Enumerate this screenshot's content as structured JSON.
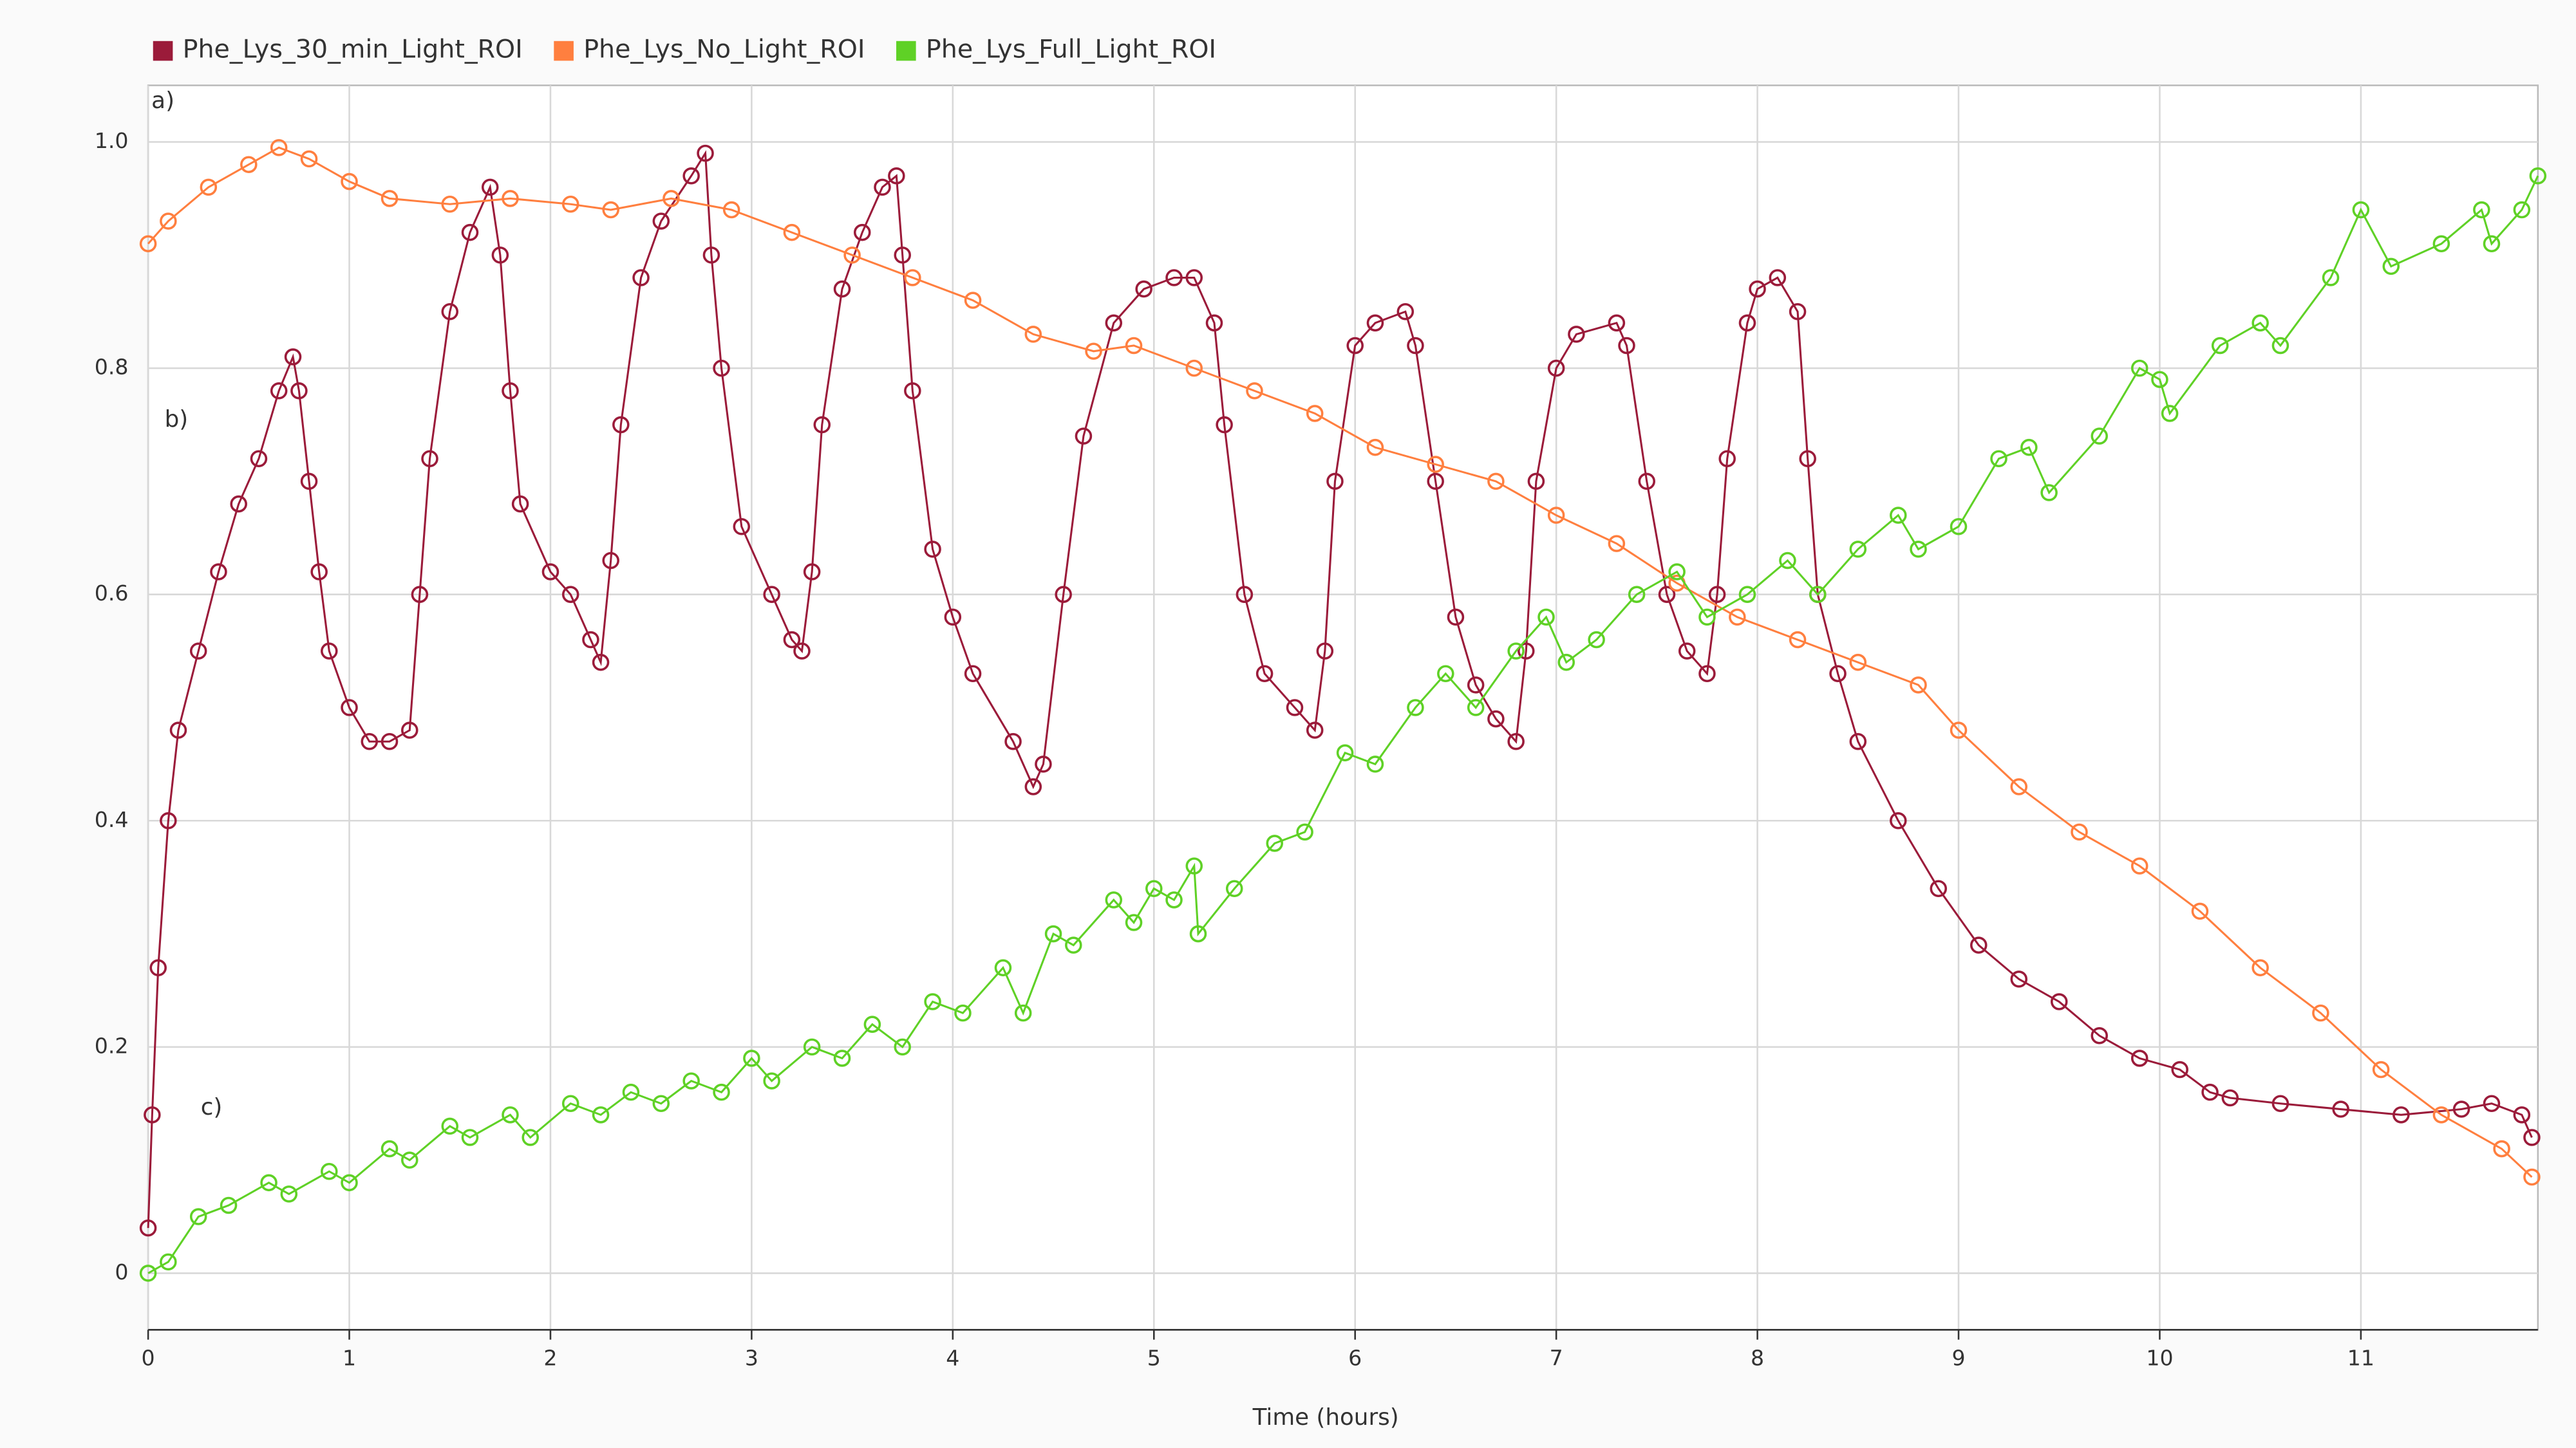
{
  "chart_data": {
    "type": "line",
    "x_label": "Time (hours)",
    "annotations": [
      "a)",
      "b)",
      "c)"
    ],
    "legend": "top",
    "grid": true,
    "marker": "hollow-circle",
    "xlim": [
      0,
      11.88
    ],
    "xticks": [
      0,
      1,
      2,
      3,
      4,
      5,
      6,
      7,
      8,
      9,
      10,
      11
    ],
    "ylim": [
      -0.05,
      1.05
    ],
    "yticks": [
      0,
      0.2,
      0.4,
      0.6,
      0.8,
      {
        "value": 1,
        "label": "1.0"
      }
    ],
    "series": [
      {
        "name": "Phe_Lys_30_min_Light_ROI",
        "color": "#9b1b3a",
        "x": [
          0,
          0.02,
          0.05,
          0.1,
          0.15,
          0.25,
          0.35,
          0.45,
          0.55,
          0.65,
          0.72,
          0.75,
          0.8,
          0.85,
          0.9,
          1.0,
          1.1,
          1.2,
          1.3,
          1.35,
          1.4,
          1.5,
          1.6,
          1.7,
          1.75,
          1.8,
          1.85,
          2.0,
          2.1,
          2.2,
          2.25,
          2.3,
          2.35,
          2.45,
          2.55,
          2.7,
          2.77,
          2.8,
          2.85,
          2.95,
          3.1,
          3.2,
          3.25,
          3.3,
          3.35,
          3.45,
          3.55,
          3.65,
          3.72,
          3.75,
          3.8,
          3.9,
          4.0,
          4.1,
          4.3,
          4.4,
          4.45,
          4.55,
          4.65,
          4.8,
          4.95,
          5.1,
          5.2,
          5.3,
          5.35,
          5.45,
          5.55,
          5.7,
          5.8,
          5.85,
          5.9,
          6.0,
          6.1,
          6.25,
          6.3,
          6.4,
          6.5,
          6.6,
          6.7,
          6.8,
          6.85,
          6.9,
          7.0,
          7.1,
          7.3,
          7.35,
          7.45,
          7.55,
          7.65,
          7.75,
          7.8,
          7.85,
          7.95,
          8.0,
          8.1,
          8.2,
          8.25,
          8.3,
          8.4,
          8.5,
          8.7,
          8.9,
          9.1,
          9.3,
          9.5,
          9.7,
          9.9,
          10.1,
          10.25,
          10.35,
          10.6,
          10.9,
          11.2,
          11.5,
          11.65,
          11.8,
          11.85
        ],
        "values": [
          0.04,
          0.14,
          0.27,
          0.4,
          0.48,
          0.55,
          0.62,
          0.68,
          0.72,
          0.78,
          0.81,
          0.78,
          0.7,
          0.62,
          0.55,
          0.5,
          0.47,
          0.47,
          0.48,
          0.6,
          0.72,
          0.85,
          0.92,
          0.96,
          0.9,
          0.78,
          0.68,
          0.62,
          0.6,
          0.56,
          0.54,
          0.63,
          0.75,
          0.88,
          0.93,
          0.97,
          0.99,
          0.9,
          0.8,
          0.66,
          0.6,
          0.56,
          0.55,
          0.62,
          0.75,
          0.87,
          0.92,
          0.96,
          0.97,
          0.9,
          0.78,
          0.64,
          0.58,
          0.53,
          0.47,
          0.43,
          0.45,
          0.6,
          0.74,
          0.84,
          0.87,
          0.88,
          0.88,
          0.84,
          0.75,
          0.6,
          0.53,
          0.5,
          0.48,
          0.55,
          0.7,
          0.82,
          0.84,
          0.85,
          0.82,
          0.7,
          0.58,
          0.52,
          0.49,
          0.47,
          0.55,
          0.7,
          0.8,
          0.83,
          0.84,
          0.82,
          0.7,
          0.6,
          0.55,
          0.53,
          0.6,
          0.72,
          0.84,
          0.87,
          0.88,
          0.85,
          0.72,
          0.6,
          0.53,
          0.47,
          0.4,
          0.34,
          0.29,
          0.26,
          0.24,
          0.21,
          0.19,
          0.18,
          0.16,
          0.155,
          0.15,
          0.145,
          0.14,
          0.145,
          0.15,
          0.14,
          0.12
        ]
      },
      {
        "name": "Phe_Lys_No_Light_ROI",
        "color": "#ff7f3f",
        "x": [
          0,
          0.1,
          0.3,
          0.5,
          0.65,
          0.8,
          1.0,
          1.2,
          1.5,
          1.8,
          2.1,
          2.3,
          2.6,
          2.9,
          3.2,
          3.5,
          3.8,
          4.1,
          4.4,
          4.7,
          4.9,
          5.2,
          5.5,
          5.8,
          6.1,
          6.4,
          6.7,
          7.0,
          7.3,
          7.6,
          7.9,
          8.2,
          8.5,
          8.8,
          9.0,
          9.3,
          9.6,
          9.9,
          10.2,
          10.5,
          10.8,
          11.1,
          11.4,
          11.7,
          11.85
        ],
        "values": [
          0.91,
          0.93,
          0.96,
          0.98,
          0.995,
          0.985,
          0.965,
          0.95,
          0.945,
          0.95,
          0.945,
          0.94,
          0.95,
          0.94,
          0.92,
          0.9,
          0.88,
          0.86,
          0.83,
          0.815,
          0.82,
          0.8,
          0.78,
          0.76,
          0.73,
          0.715,
          0.7,
          0.67,
          0.645,
          0.61,
          0.58,
          0.56,
          0.54,
          0.52,
          0.48,
          0.43,
          0.39,
          0.36,
          0.32,
          0.27,
          0.23,
          0.18,
          0.14,
          0.11,
          0.085
        ]
      },
      {
        "name": "Phe_Lys_Full_Light_ROI",
        "color": "#5fd126",
        "x": [
          0,
          0.1,
          0.25,
          0.4,
          0.6,
          0.7,
          0.9,
          1.0,
          1.2,
          1.3,
          1.5,
          1.6,
          1.8,
          1.9,
          2.1,
          2.25,
          2.4,
          2.55,
          2.7,
          2.85,
          3.0,
          3.1,
          3.3,
          3.45,
          3.6,
          3.75,
          3.9,
          4.05,
          4.25,
          4.35,
          4.5,
          4.6,
          4.8,
          4.9,
          5.0,
          5.1,
          5.2,
          5.22,
          5.4,
          5.6,
          5.75,
          5.95,
          6.1,
          6.3,
          6.45,
          6.6,
          6.8,
          6.95,
          7.05,
          7.2,
          7.4,
          7.6,
          7.75,
          7.95,
          8.15,
          8.3,
          8.5,
          8.7,
          8.8,
          9.0,
          9.2,
          9.35,
          9.45,
          9.7,
          9.9,
          10.0,
          10.05,
          10.3,
          10.5,
          10.6,
          10.85,
          11.0,
          11.15,
          11.4,
          11.6,
          11.65,
          11.8,
          11.88
        ],
        "values": [
          0,
          0.01,
          0.05,
          0.06,
          0.08,
          0.07,
          0.09,
          0.08,
          0.11,
          0.1,
          0.13,
          0.12,
          0.14,
          0.12,
          0.15,
          0.14,
          0.16,
          0.15,
          0.17,
          0.16,
          0.19,
          0.17,
          0.2,
          0.19,
          0.22,
          0.2,
          0.24,
          0.23,
          0.27,
          0.23,
          0.3,
          0.29,
          0.33,
          0.31,
          0.34,
          0.33,
          0.36,
          0.3,
          0.34,
          0.38,
          0.39,
          0.46,
          0.45,
          0.5,
          0.53,
          0.5,
          0.55,
          0.58,
          0.54,
          0.56,
          0.6,
          0.62,
          0.58,
          0.6,
          0.63,
          0.6,
          0.64,
          0.67,
          0.64,
          0.66,
          0.72,
          0.73,
          0.69,
          0.74,
          0.8,
          0.79,
          0.76,
          0.82,
          0.84,
          0.82,
          0.88,
          0.94,
          0.89,
          0.91,
          0.94,
          0.91,
          0.94,
          0.97
        ]
      }
    ]
  }
}
